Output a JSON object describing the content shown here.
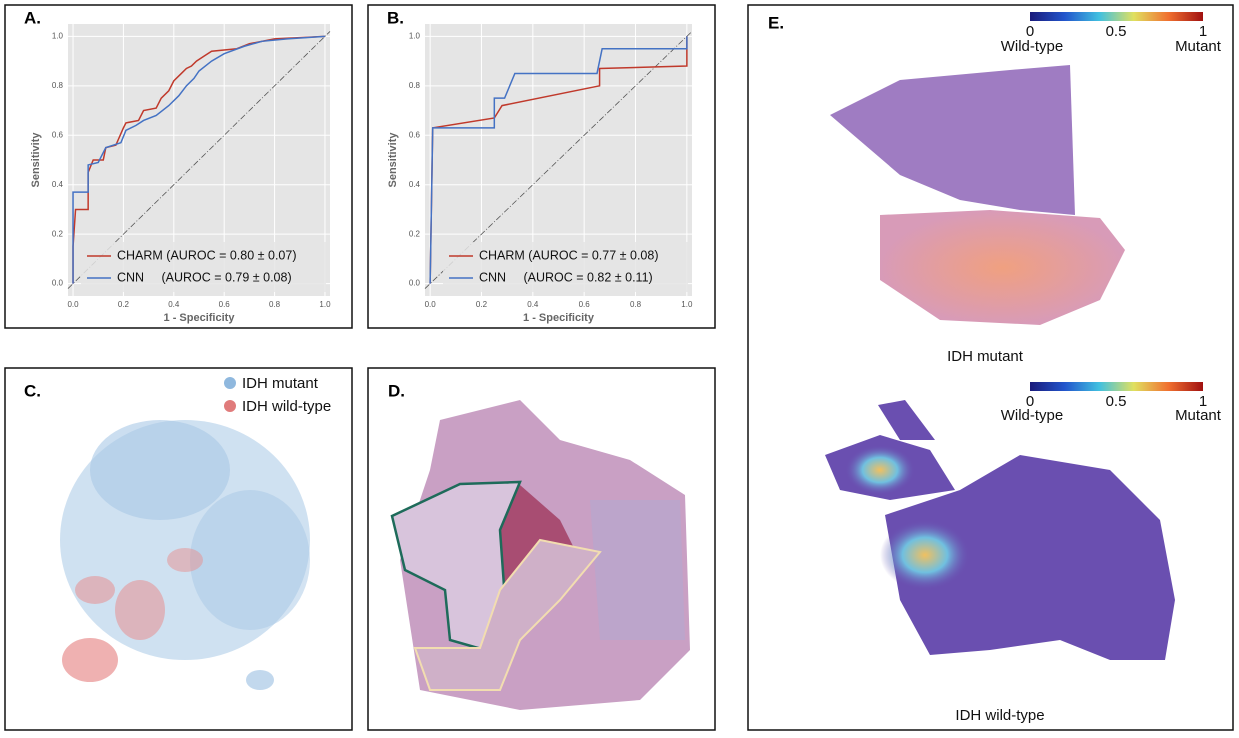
{
  "chart_data": [
    {
      "type": "line",
      "panel_label": "A.",
      "xlabel": "1 - Specificity",
      "ylabel": "Sensitivity",
      "xlim": [
        -0.02,
        1.02
      ],
      "ylim": [
        -0.05,
        1.05
      ],
      "xticks": [
        {
          "value": 0,
          "label": "0.0"
        },
        0.2,
        0.4,
        0.6,
        0.8,
        {
          "value": 1,
          "label": "1.0"
        }
      ],
      "yticks": [
        {
          "value": 0,
          "label": "0.0"
        },
        0.2,
        0.4,
        0.6,
        0.8,
        {
          "value": 1,
          "label": "1.0"
        }
      ],
      "grid": true,
      "diagonal": true,
      "legend": "lower right",
      "series": [
        {
          "name": "CHARM (AUROC = 0.80 ± 0.07)",
          "color": "#c0392b",
          "x": [
            0,
            0,
            0.01,
            0.06,
            0.06,
            0.08,
            0.12,
            0.13,
            0.17,
            0.2,
            0.21,
            0.26,
            0.28,
            0.33,
            0.35,
            0.38,
            0.4,
            0.43,
            0.45,
            0.47,
            0.49,
            0.52,
            0.55,
            0.65,
            0.7,
            0.8,
            1
          ],
          "y": [
            0,
            0.15,
            0.3,
            0.3,
            0.45,
            0.5,
            0.5,
            0.55,
            0.56,
            0.63,
            0.65,
            0.66,
            0.7,
            0.71,
            0.75,
            0.78,
            0.82,
            0.85,
            0.87,
            0.88,
            0.9,
            0.92,
            0.94,
            0.95,
            0.97,
            0.99,
            1
          ]
        },
        {
          "name": "CNN     (AUROC = 0.79 ± 0.08)",
          "color": "#4472c4",
          "x": [
            0,
            0,
            0.06,
            0.06,
            0.1,
            0.13,
            0.19,
            0.21,
            0.25,
            0.28,
            0.33,
            0.38,
            0.42,
            0.45,
            0.48,
            0.5,
            0.55,
            0.6,
            0.68,
            0.75,
            0.85,
            1
          ],
          "y": [
            0,
            0.37,
            0.37,
            0.48,
            0.49,
            0.55,
            0.57,
            0.62,
            0.64,
            0.66,
            0.68,
            0.72,
            0.76,
            0.8,
            0.83,
            0.86,
            0.9,
            0.93,
            0.96,
            0.98,
            0.99,
            1
          ]
        }
      ]
    },
    {
      "type": "line",
      "panel_label": "B.",
      "xlabel": "1 - Specificity",
      "ylabel": "Sensitivity",
      "xlim": [
        -0.02,
        1.02
      ],
      "ylim": [
        -0.05,
        1.05
      ],
      "xticks": [
        {
          "value": 0,
          "label": "0.0"
        },
        0.2,
        0.4,
        0.6,
        0.8,
        {
          "value": 1,
          "label": "1.0"
        }
      ],
      "yticks": [
        {
          "value": 0,
          "label": "0.0"
        },
        0.2,
        0.4,
        0.6,
        0.8,
        {
          "value": 1,
          "label": "1.0"
        }
      ],
      "grid": true,
      "diagonal": true,
      "legend": "lower right",
      "series": [
        {
          "name": "CHARM (AUROC = 0.77 ± 0.08)",
          "color": "#c0392b",
          "x": [
            0,
            0.01,
            0.25,
            0.28,
            0.66,
            0.66,
            1,
            1
          ],
          "y": [
            0,
            0.63,
            0.67,
            0.72,
            0.8,
            0.87,
            0.88,
            1
          ]
        },
        {
          "name": "CNN     (AUROC = 0.82 ± 0.11)",
          "color": "#4472c4",
          "x": [
            0,
            0.01,
            0.25,
            0.25,
            0.29,
            0.33,
            0.65,
            0.67,
            1,
            1
          ],
          "y": [
            0,
            0.63,
            0.63,
            0.75,
            0.75,
            0.85,
            0.85,
            0.95,
            0.95,
            1
          ]
        }
      ]
    }
  ],
  "panels": {
    "c": {
      "label": "C.",
      "legend": [
        {
          "name": "IDH mutant",
          "color": "#8fb8de"
        },
        {
          "name": "IDH wild-type",
          "color": "#e07b7b"
        }
      ]
    },
    "d": {
      "label": "D."
    },
    "e": {
      "label": "E.",
      "colorbar_ticks": [
        "0",
        "0.5",
        "1"
      ],
      "colorbar_ends": [
        "Wild-type",
        "Mutant"
      ],
      "captions": [
        "IDH mutant",
        "IDH wild-type"
      ]
    }
  }
}
